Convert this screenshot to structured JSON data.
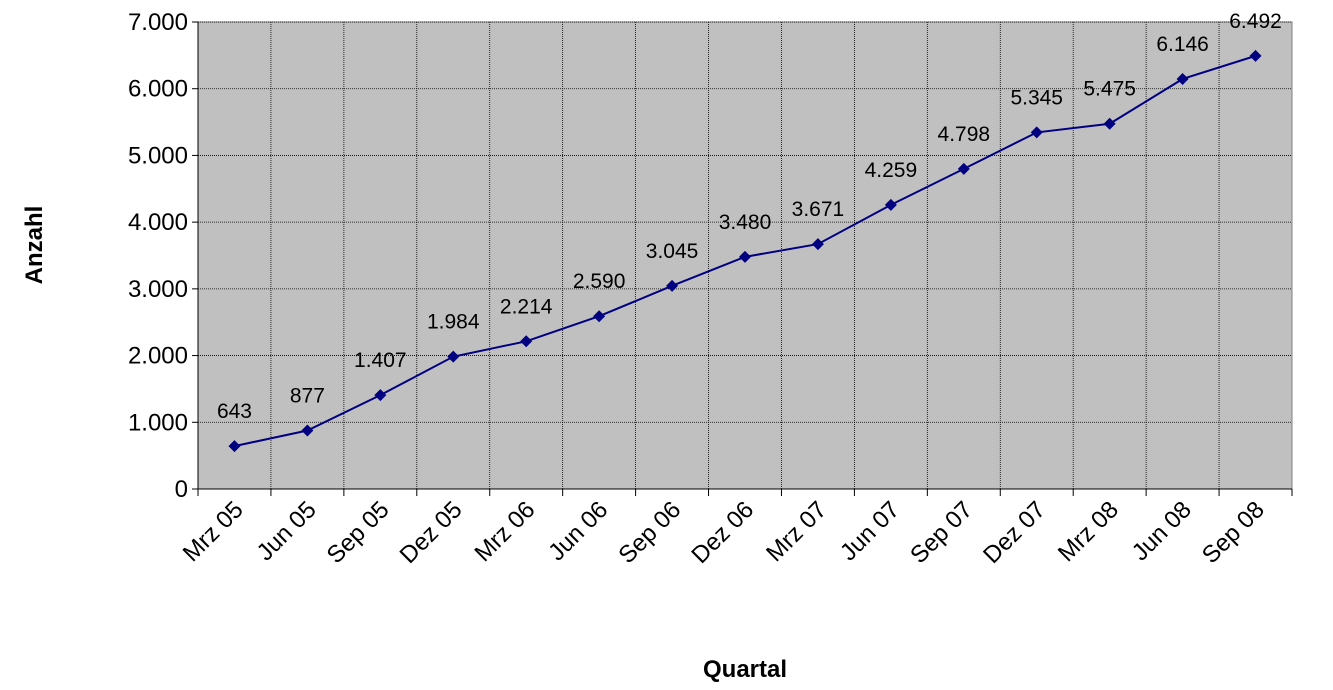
{
  "chart_data": {
    "type": "line",
    "xlabel": "Quartal",
    "ylabel": "Anzahl",
    "ylim": [
      0,
      7000
    ],
    "yticks": [
      {
        "value": 0,
        "label": "0"
      },
      {
        "value": 1000,
        "label": "1.000"
      },
      {
        "value": 2000,
        "label": "2.000"
      },
      {
        "value": 3000,
        "label": "3.000"
      },
      {
        "value": 4000,
        "label": "4.000"
      },
      {
        "value": 5000,
        "label": "5.000"
      },
      {
        "value": 6000,
        "label": "6.000"
      },
      {
        "value": 7000,
        "label": "7.000"
      }
    ],
    "categories": [
      "Mrz 05",
      "Jun 05",
      "Sep 05",
      "Dez 05",
      "Mrz 06",
      "Jun 06",
      "Sep 06",
      "Dez 06",
      "Mrz 07",
      "Jun 07",
      "Sep 07",
      "Dez 07",
      "Mrz 08",
      "Jun 08",
      "Sep 08"
    ],
    "series": [
      {
        "values": [
          643,
          877,
          1407,
          1984,
          2214,
          2590,
          3045,
          3480,
          3671,
          4259,
          4798,
          5345,
          5475,
          6146,
          6492
        ],
        "labels": [
          "643",
          "877",
          "1.407",
          "1.984",
          "2.214",
          "2.590",
          "3.045",
          "3.480",
          "3.671",
          "4.259",
          "4.798",
          "5.345",
          "5.475",
          "6.146",
          "6.492"
        ]
      }
    ],
    "grid": true,
    "colors": {
      "plot_background": "#c0c0c0",
      "series": "#000080",
      "grid": "#000000"
    }
  }
}
